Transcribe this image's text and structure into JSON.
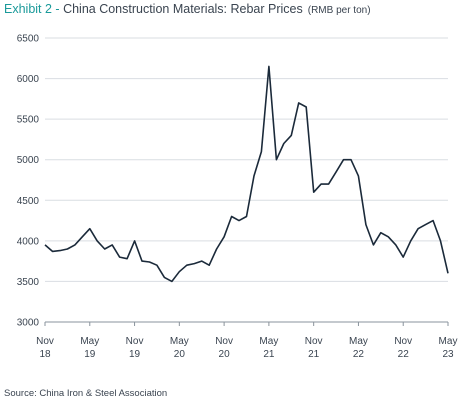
{
  "chart_data": {
    "type": "line",
    "title_prefix": "Exhibit 2 - ",
    "title": "China Construction Materials: Rebar Prices",
    "subtitle": "(RMB per ton)",
    "source": "Source: China Iron & Steel Association",
    "x": [
      "2018-11",
      "2018-12",
      "2019-01",
      "2019-02",
      "2019-03",
      "2019-04",
      "2019-05",
      "2019-06",
      "2019-07",
      "2019-08",
      "2019-09",
      "2019-10",
      "2019-11",
      "2019-12",
      "2020-01",
      "2020-02",
      "2020-03",
      "2020-04",
      "2020-05",
      "2020-06",
      "2020-07",
      "2020-08",
      "2020-09",
      "2020-10",
      "2020-11",
      "2020-12",
      "2021-01",
      "2021-02",
      "2021-03",
      "2021-04",
      "2021-05",
      "2021-06",
      "2021-07",
      "2021-08",
      "2021-09",
      "2021-10",
      "2021-11",
      "2021-12",
      "2022-01",
      "2022-02",
      "2022-03",
      "2022-04",
      "2022-05",
      "2022-06",
      "2022-07",
      "2022-08",
      "2022-09",
      "2022-10",
      "2022-11",
      "2022-12",
      "2023-01",
      "2023-02",
      "2023-03",
      "2023-04",
      "2023-05"
    ],
    "series": [
      {
        "name": "Rebar price",
        "color": "#1b2a3a",
        "values": [
          3950,
          3870,
          3880,
          3900,
          3950,
          4050,
          4150,
          4000,
          3900,
          3950,
          3800,
          3780,
          4000,
          3750,
          3740,
          3700,
          3550,
          3500,
          3620,
          3700,
          3720,
          3750,
          3700,
          3900,
          4050,
          4300,
          4250,
          4300,
          4800,
          5100,
          6150,
          5000,
          5200,
          5300,
          5700,
          5650,
          4600,
          4700,
          4700,
          4850,
          5000,
          5000,
          4800,
          4200,
          3950,
          4100,
          4050,
          3950,
          3800,
          4000,
          4150,
          4200,
          4250,
          4000,
          3600
        ]
      }
    ],
    "ylim": [
      3000,
      6500
    ],
    "yticks": [
      3000,
      3500,
      4000,
      4500,
      5000,
      5500,
      6000,
      6500
    ],
    "xticks": [
      {
        "value": "2018-11",
        "label": "Nov 18"
      },
      {
        "value": "2019-05",
        "label": "May 19"
      },
      {
        "value": "2019-11",
        "label": "Nov 19"
      },
      {
        "value": "2020-05",
        "label": "May 20"
      },
      {
        "value": "2020-11",
        "label": "Nov 20"
      },
      {
        "value": "2021-05",
        "label": "May 21"
      },
      {
        "value": "2021-11",
        "label": "Nov 21"
      },
      {
        "value": "2022-05",
        "label": "May 22"
      },
      {
        "value": "2022-11",
        "label": "Nov 22"
      },
      {
        "value": "2023-05",
        "label": "May 23"
      }
    ],
    "grid": true
  }
}
